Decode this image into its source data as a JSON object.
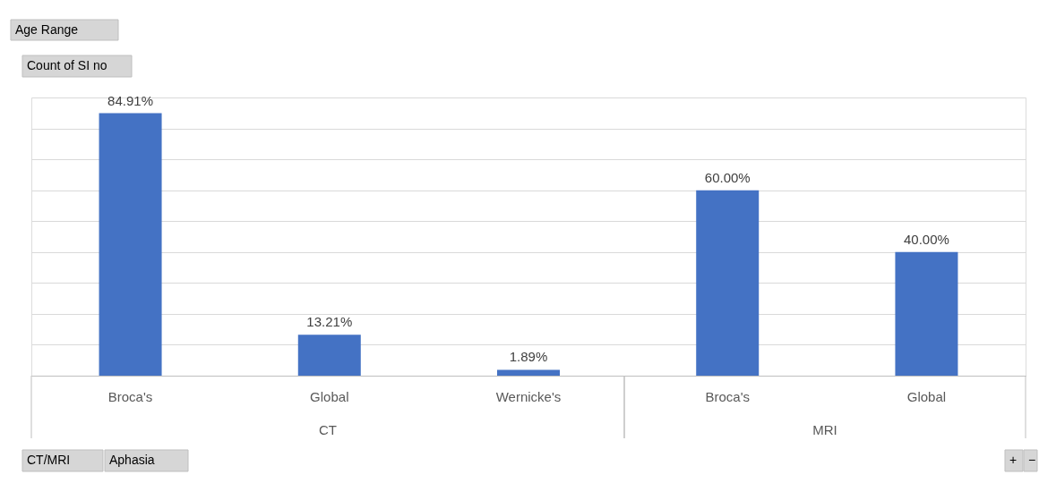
{
  "chart_data": {
    "type": "bar",
    "categories": [
      "Broca's",
      "Global",
      "Wernicke's",
      "Broca's",
      "Global"
    ],
    "values": [
      84.91,
      13.21,
      1.89,
      60.0,
      40.0
    ],
    "value_labels": [
      "84.91%",
      "13.21%",
      "1.89%",
      "60.00%",
      "40.00%"
    ],
    "color": "#4472c4",
    "ylim": [
      0,
      90
    ],
    "yticks": [
      {
        "value": 0,
        "label": null
      },
      {
        "value": 10,
        "label": null
      },
      {
        "value": 20,
        "label": null
      },
      {
        "value": 30,
        "label": null
      },
      {
        "value": 40,
        "label": null
      },
      {
        "value": 50,
        "label": null
      },
      {
        "value": 60,
        "label": null
      },
      {
        "value": 70,
        "label": null
      },
      {
        "value": 80,
        "label": null
      },
      {
        "value": 90,
        "label": null
      }
    ],
    "tick_labels": "x",
    "grid": "y",
    "annotations": [
      "Age Range",
      "Count of SI no",
      "CT",
      "MRI",
      "CT/MRI",
      "Aphasia",
      "+",
      "−"
    ]
  }
}
